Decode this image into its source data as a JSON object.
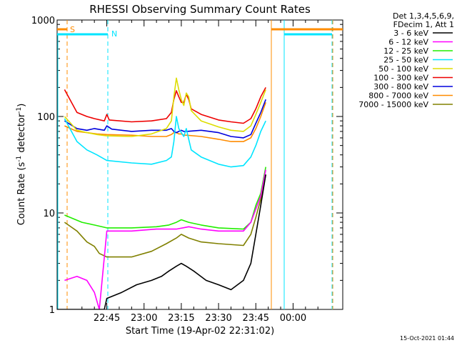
{
  "chart_data": {
    "type": "line",
    "title": "RHESSI Observing Summary Count Rates",
    "xlabel": "Start Time (19-Apr-02 22:31:02)",
    "ylabel_main": "Count Rate (s",
    "ylabel_sup1": "-1",
    "ylabel_mid": " detector",
    "ylabel_sup2": "-1",
    "ylabel_end": ")",
    "yscale": "log",
    "ylim": [
      1,
      1000
    ],
    "xlim_minutes": [
      -20,
      95
    ],
    "x_ticks": [
      {
        "m": 0,
        "label": "22:45"
      },
      {
        "m": 15,
        "label": "23:00"
      },
      {
        "m": 30,
        "label": "23:15"
      },
      {
        "m": 45,
        "label": "23:30"
      },
      {
        "m": 60,
        "label": "23:45"
      },
      {
        "m": 75,
        "label": "00:00"
      }
    ],
    "y_ticks": [
      {
        "v": 1,
        "label": "1"
      },
      {
        "v": 10,
        "label": "10"
      },
      {
        "v": 100,
        "label": "100"
      },
      {
        "v": 1000,
        "label": "1000"
      }
    ],
    "flags": [
      {
        "label": "S",
        "color": "#ff8c00"
      },
      {
        "label": "N",
        "color": "#00e5ff"
      }
    ],
    "legend_header": [
      "Det 1,3,4,5,6,9,",
      "FDecim 1, Att 1"
    ],
    "legend_position": "top-right-outside",
    "series": [
      {
        "name": "3 - 6 keV",
        "color": "#000000",
        "points": [
          [
            -20,
            1
          ],
          [
            -1,
            1
          ],
          [
            0,
            1.3
          ],
          [
            6,
            1.5
          ],
          [
            12,
            1.8
          ],
          [
            18,
            2.0
          ],
          [
            22,
            2.2
          ],
          [
            25,
            2.5
          ],
          [
            28,
            2.8
          ],
          [
            30,
            3.0
          ],
          [
            32,
            2.8
          ],
          [
            35,
            2.5
          ],
          [
            40,
            2.0
          ],
          [
            45,
            1.8
          ],
          [
            50,
            1.6
          ],
          [
            55,
            2.0
          ],
          [
            58,
            3
          ],
          [
            60,
            6
          ],
          [
            62,
            12
          ],
          [
            64,
            25
          ]
        ]
      },
      {
        "name": "6 - 12 keV",
        "color": "#ff00ff",
        "points": [
          [
            -17,
            2.0
          ],
          [
            -12,
            2.2
          ],
          [
            -8,
            2.0
          ],
          [
            -5,
            1.5
          ],
          [
            -3,
            1
          ],
          [
            0,
            6.5
          ],
          [
            10,
            6.5
          ],
          [
            20,
            6.8
          ],
          [
            28,
            6.8
          ],
          [
            33,
            7.2
          ],
          [
            38,
            6.8
          ],
          [
            45,
            6.5
          ],
          [
            55,
            6.5
          ],
          [
            58,
            8
          ],
          [
            60,
            11
          ],
          [
            62,
            15
          ],
          [
            64,
            28
          ]
        ]
      },
      {
        "name": "12 - 25 keV",
        "color": "#22ee00",
        "points": [
          [
            -17,
            9.5
          ],
          [
            -10,
            8.0
          ],
          [
            -5,
            7.5
          ],
          [
            0,
            7.0
          ],
          [
            10,
            7.0
          ],
          [
            20,
            7.2
          ],
          [
            25,
            7.5
          ],
          [
            28,
            8.0
          ],
          [
            30,
            8.5
          ],
          [
            33,
            8.0
          ],
          [
            38,
            7.5
          ],
          [
            45,
            7.0
          ],
          [
            55,
            6.8
          ],
          [
            58,
            8
          ],
          [
            60,
            12
          ],
          [
            62,
            16
          ],
          [
            64,
            30
          ]
        ]
      },
      {
        "name": "25 - 50 keV",
        "color": "#00e5ff",
        "points": [
          [
            -17,
            95
          ],
          [
            -12,
            55
          ],
          [
            -8,
            45
          ],
          [
            -4,
            40
          ],
          [
            0,
            35
          ],
          [
            10,
            33
          ],
          [
            18,
            32
          ],
          [
            24,
            35
          ],
          [
            26,
            38
          ],
          [
            27,
            55
          ],
          [
            28,
            100
          ],
          [
            29,
            75
          ],
          [
            30,
            68
          ],
          [
            31,
            62
          ],
          [
            32,
            75
          ],
          [
            33,
            58
          ],
          [
            34,
            45
          ],
          [
            38,
            38
          ],
          [
            45,
            32
          ],
          [
            50,
            30
          ],
          [
            55,
            31
          ],
          [
            58,
            38
          ],
          [
            60,
            50
          ],
          [
            62,
            70
          ],
          [
            64,
            90
          ]
        ]
      },
      {
        "name": "50 - 100 keV",
        "color": "#dddd00",
        "points": [
          [
            -17,
            100
          ],
          [
            -12,
            72
          ],
          [
            -8,
            68
          ],
          [
            -4,
            65
          ],
          [
            0,
            63
          ],
          [
            10,
            62
          ],
          [
            18,
            66
          ],
          [
            24,
            75
          ],
          [
            26,
            90
          ],
          [
            27,
            160
          ],
          [
            28,
            250
          ],
          [
            29,
            190
          ],
          [
            30,
            150
          ],
          [
            31,
            130
          ],
          [
            32,
            175
          ],
          [
            33,
            160
          ],
          [
            34,
            115
          ],
          [
            38,
            90
          ],
          [
            45,
            78
          ],
          [
            50,
            72
          ],
          [
            55,
            70
          ],
          [
            58,
            80
          ],
          [
            60,
            105
          ],
          [
            62,
            140
          ],
          [
            64,
            190
          ]
        ]
      },
      {
        "name": "100 - 300 keV",
        "color": "#ee0000",
        "points": [
          [
            -17,
            190
          ],
          [
            -12,
            110
          ],
          [
            -8,
            100
          ],
          [
            -5,
            95
          ],
          [
            -1,
            90
          ],
          [
            0,
            105
          ],
          [
            1,
            92
          ],
          [
            10,
            88
          ],
          [
            18,
            90
          ],
          [
            24,
            95
          ],
          [
            26,
            110
          ],
          [
            27,
            150
          ],
          [
            28,
            185
          ],
          [
            29,
            160
          ],
          [
            30,
            140
          ],
          [
            31,
            140
          ],
          [
            32,
            170
          ],
          [
            33,
            150
          ],
          [
            34,
            120
          ],
          [
            38,
            105
          ],
          [
            45,
            92
          ],
          [
            50,
            88
          ],
          [
            55,
            85
          ],
          [
            58,
            95
          ],
          [
            60,
            120
          ],
          [
            62,
            160
          ],
          [
            64,
            200
          ]
        ]
      },
      {
        "name": "300 - 800 keV",
        "color": "#0000dd",
        "points": [
          [
            -17,
            90
          ],
          [
            -12,
            75
          ],
          [
            -8,
            72
          ],
          [
            -5,
            75
          ],
          [
            -1,
            72
          ],
          [
            0,
            80
          ],
          [
            2,
            74
          ],
          [
            10,
            70
          ],
          [
            18,
            72
          ],
          [
            24,
            72
          ],
          [
            26,
            75
          ],
          [
            27,
            70
          ],
          [
            28,
            68
          ],
          [
            29,
            70
          ],
          [
            30,
            72
          ],
          [
            31,
            70
          ],
          [
            32,
            70
          ],
          [
            38,
            72
          ],
          [
            45,
            68
          ],
          [
            50,
            62
          ],
          [
            55,
            60
          ],
          [
            58,
            65
          ],
          [
            60,
            85
          ],
          [
            62,
            110
          ],
          [
            64,
            150
          ]
        ]
      },
      {
        "name": "800 - 7000 keV",
        "color": "#ff8c00",
        "points": [
          [
            -17,
            80
          ],
          [
            -12,
            70
          ],
          [
            -8,
            68
          ],
          [
            -4,
            66
          ],
          [
            0,
            65
          ],
          [
            10,
            64
          ],
          [
            18,
            62
          ],
          [
            24,
            62
          ],
          [
            26,
            65
          ],
          [
            27,
            68
          ],
          [
            28,
            68
          ],
          [
            29,
            66
          ],
          [
            30,
            66
          ],
          [
            31,
            64
          ],
          [
            32,
            64
          ],
          [
            38,
            62
          ],
          [
            45,
            58
          ],
          [
            50,
            55
          ],
          [
            55,
            55
          ],
          [
            58,
            60
          ],
          [
            60,
            75
          ],
          [
            62,
            100
          ],
          [
            64,
            140
          ]
        ]
      },
      {
        "name": "7000 - 15000 keV",
        "color": "#808000",
        "points": [
          [
            -17,
            8.0
          ],
          [
            -12,
            6.5
          ],
          [
            -8,
            5.0
          ],
          [
            -5,
            4.5
          ],
          [
            -3,
            3.8
          ],
          [
            0,
            3.5
          ],
          [
            10,
            3.5
          ],
          [
            18,
            4.0
          ],
          [
            24,
            4.8
          ],
          [
            28,
            5.5
          ],
          [
            30,
            6.0
          ],
          [
            33,
            5.5
          ],
          [
            38,
            5.0
          ],
          [
            45,
            4.8
          ],
          [
            55,
            4.6
          ],
          [
            58,
            6
          ],
          [
            60,
            9
          ],
          [
            62,
            14
          ],
          [
            64,
            25
          ]
        ]
      }
    ]
  },
  "footer": {
    "timestamp": "15-Oct-2021 01:44"
  }
}
